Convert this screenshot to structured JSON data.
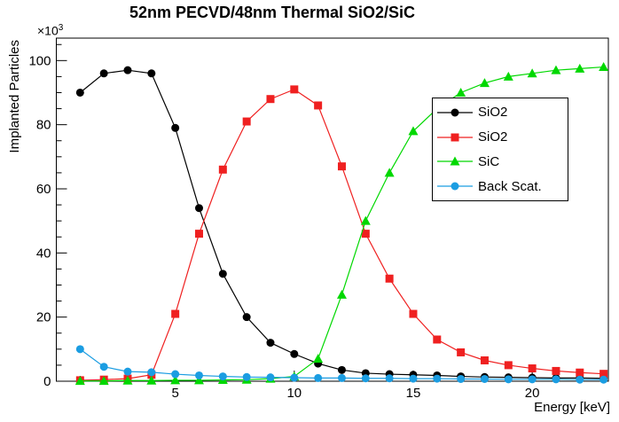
{
  "chart_data": {
    "type": "line",
    "title": "52nm PECVD/48nm Thermal SiO2/SiC",
    "xlabel": "Energy [keV]",
    "ylabel": "Implanted Particles",
    "y_axis_multiplier_base": "×10",
    "y_axis_multiplier_exp": "3",
    "xlim": [
      0,
      23.2
    ],
    "ylim": [
      0,
      107
    ],
    "x_major_ticks": [
      5,
      10,
      15,
      20
    ],
    "x_minor_step": 1,
    "y_major_ticks": [
      0,
      20,
      40,
      60,
      80,
      100
    ],
    "y_minor_step": 5,
    "grid": false,
    "legend_position": "upper-right",
    "x": [
      1,
      2,
      3,
      4,
      5,
      6,
      7,
      8,
      9,
      10,
      11,
      12,
      13,
      14,
      15,
      16,
      17,
      18,
      19,
      20,
      21,
      22,
      23
    ],
    "series": [
      {
        "name": "SiO2",
        "color": "#000000",
        "marker": "circle",
        "values": [
          90,
          96,
          97,
          96,
          79,
          54,
          33.5,
          20,
          12,
          8.5,
          5.5,
          3.5,
          2.5,
          2.2,
          2,
          1.8,
          1.5,
          1.3,
          1.2,
          1.1,
          1,
          1,
          0.9
        ]
      },
      {
        "name": "SiO2",
        "color": "#ef2020",
        "marker": "square",
        "values": [
          0.3,
          0.5,
          0.8,
          2,
          21,
          46,
          66,
          81,
          88,
          91,
          86,
          67,
          46,
          32,
          21,
          13,
          9,
          6.5,
          5,
          4,
          3.2,
          2.7,
          2.3
        ]
      },
      {
        "name": "SiC",
        "color": "#00d800",
        "marker": "triangle-up",
        "values": [
          0.1,
          0.1,
          0.2,
          0.2,
          0.3,
          0.3,
          0.4,
          0.5,
          0.8,
          1.5,
          7,
          27,
          50,
          65,
          78,
          85,
          90,
          93,
          95,
          96,
          97,
          97.5,
          98
        ]
      },
      {
        "name": "Back Scat.",
        "color": "#1b9de2",
        "marker": "circle",
        "values": [
          10,
          4.5,
          3,
          2.8,
          2.2,
          1.8,
          1.5,
          1.3,
          1.2,
          1.1,
          1,
          1,
          0.9,
          0.9,
          0.8,
          0.8,
          0.7,
          0.7,
          0.6,
          0.6,
          0.6,
          0.5,
          0.5
        ]
      }
    ]
  }
}
